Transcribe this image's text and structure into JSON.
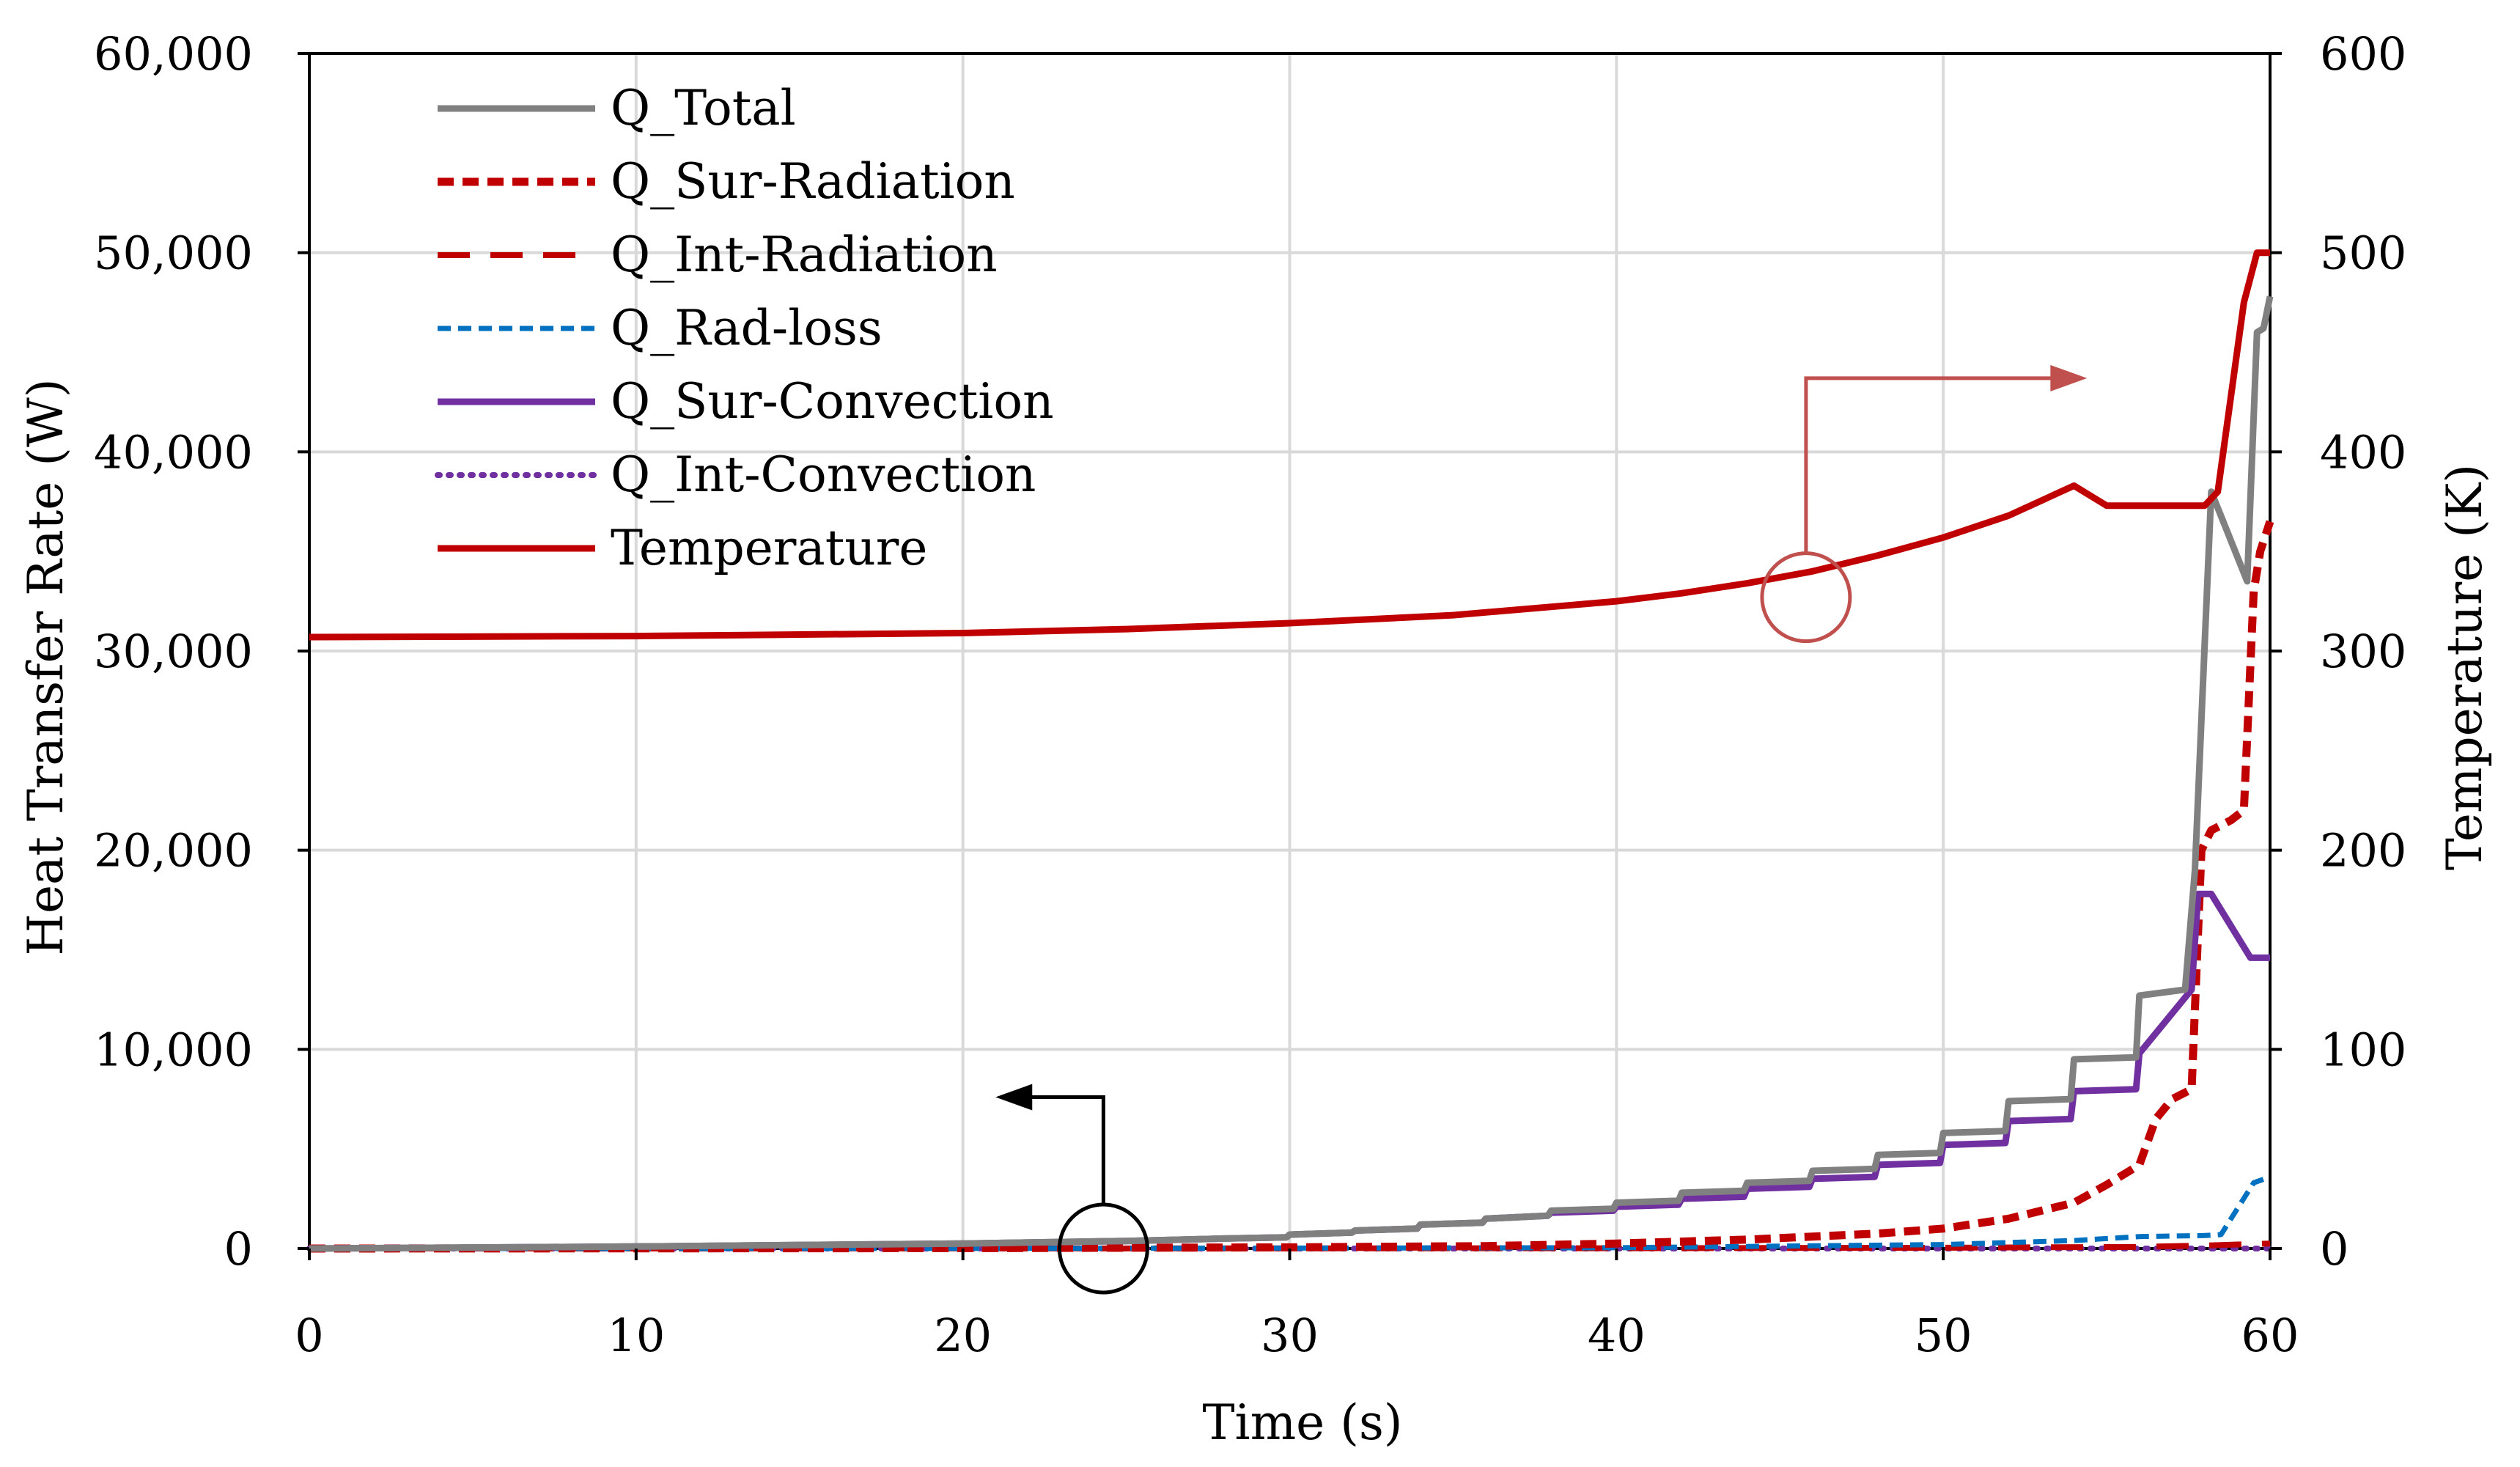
{
  "chart_data": {
    "type": "line",
    "xlabel": "Time (s)",
    "ylabel": "Heat Transfer Rate (W)",
    "y2label": "Temperature (K)",
    "xlim": [
      0,
      60
    ],
    "ylim": [
      0,
      60000
    ],
    "y2lim": [
      0,
      600
    ],
    "grid": true,
    "legend_position": "top-left",
    "x_ticks": [
      "0",
      "10",
      "20",
      "30",
      "40",
      "50",
      "60"
    ],
    "y_ticks": [
      "0",
      "10,000",
      "20,000",
      "30,000",
      "40,000",
      "50,000",
      "60,000"
    ],
    "y2_ticks": [
      "0",
      "100",
      "200",
      "300",
      "400",
      "500",
      "600"
    ],
    "series": [
      {
        "name": "Q_Total",
        "axis": "left",
        "color": "#808080",
        "style": "solid",
        "x": [
          0,
          10,
          20,
          25,
          28,
          29.9,
          30,
          31.9,
          32,
          33.9,
          34,
          35.9,
          36,
          37.9,
          38,
          39.9,
          40,
          41.9,
          42,
          43.9,
          44,
          45.9,
          46,
          47.9,
          48,
          49.9,
          50,
          51.9,
          52,
          53.9,
          54,
          55.9,
          56,
          57.4,
          57.7,
          58.2,
          59.3,
          59.6,
          59.8,
          60
        ],
        "y": [
          0,
          100,
          250,
          380,
          500,
          560,
          700,
          800,
          900,
          1000,
          1200,
          1300,
          1500,
          1650,
          1900,
          2000,
          2300,
          2400,
          2800,
          2900,
          3300,
          3400,
          3900,
          4000,
          4700,
          4800,
          5800,
          5900,
          7400,
          7500,
          9500,
          9600,
          12700,
          13000,
          19000,
          38000,
          33500,
          46000,
          46200,
          47800
        ]
      },
      {
        "name": "Q_Sur-Radiation",
        "axis": "left",
        "color": "#c00000",
        "style": "short-dash",
        "x": [
          0,
          20,
          30,
          36,
          40,
          44,
          48,
          50,
          52,
          54,
          55,
          56,
          56.5,
          57,
          57.6,
          57.9,
          58.2,
          58.8,
          59.2,
          59.5,
          59.7,
          60
        ],
        "y": [
          0,
          20,
          60,
          120,
          250,
          450,
          750,
          1000,
          1500,
          2300,
          3200,
          4200,
          6500,
          7500,
          8000,
          20000,
          21000,
          21500,
          22000,
          33000,
          35000,
          36500
        ]
      },
      {
        "name": "Q_Int-Radiation",
        "axis": "left",
        "color": "#c00000",
        "style": "long-dash",
        "x": [
          0,
          20,
          40,
          50,
          56,
          58,
          60
        ],
        "y": [
          0,
          5,
          15,
          40,
          80,
          150,
          250
        ]
      },
      {
        "name": "Q_Rad-loss",
        "axis": "left",
        "color": "#0070c0",
        "style": "dash",
        "x": [
          0,
          20,
          40,
          50,
          54,
          56,
          58,
          58.5,
          59.5,
          60
        ],
        "y": [
          0,
          5,
          40,
          200,
          400,
          600,
          650,
          700,
          3300,
          3600
        ]
      },
      {
        "name": "Q_Sur-Convection",
        "axis": "left",
        "color": "#7030a0",
        "style": "solid",
        "x": [
          0,
          10,
          20,
          25,
          28,
          29.9,
          30,
          31.9,
          32,
          33.9,
          34,
          35.9,
          36,
          37.9,
          38,
          39.9,
          40,
          41.9,
          42,
          43.9,
          44,
          45.9,
          46,
          47.9,
          48,
          49.9,
          50,
          51.9,
          52,
          53.9,
          54,
          55.9,
          56,
          57.6,
          57.8,
          58.2,
          59.4,
          60
        ],
        "y": [
          0,
          100,
          250,
          380,
          500,
          560,
          700,
          800,
          900,
          1000,
          1200,
          1300,
          1500,
          1650,
          1800,
          1900,
          2100,
          2200,
          2500,
          2600,
          3000,
          3100,
          3500,
          3600,
          4200,
          4300,
          5200,
          5300,
          6400,
          6500,
          7900,
          8000,
          9800,
          13000,
          17800,
          17800,
          14600,
          14600
        ]
      },
      {
        "name": "Q_Int-Convection",
        "axis": "left",
        "color": "#7030a0",
        "style": "dotted",
        "x": [
          0,
          20,
          40,
          60
        ],
        "y": [
          0,
          0,
          0,
          0
        ]
      },
      {
        "name": "Temperature",
        "axis": "right",
        "color": "#c00000",
        "style": "solid",
        "x": [
          0,
          10,
          20,
          25,
          30,
          35,
          40,
          42,
          44,
          46,
          48,
          50,
          52,
          54,
          55,
          57,
          58,
          58.4,
          59.2,
          59.6,
          60
        ],
        "y": [
          307,
          307.5,
          309,
          311,
          314,
          318,
          325,
          329,
          334,
          340,
          348,
          357,
          368,
          383,
          373,
          373,
          373,
          380,
          475,
          500,
          500
        ]
      }
    ],
    "annotations": [
      {
        "type": "circle-arrow",
        "points_to": "left axis",
        "at_x": 24.3,
        "at_y_value": 0,
        "axis": "left"
      },
      {
        "type": "circle-arrow",
        "points_to": "right axis",
        "at_x": 45.8,
        "at_y_value": 327,
        "axis": "right"
      }
    ]
  }
}
